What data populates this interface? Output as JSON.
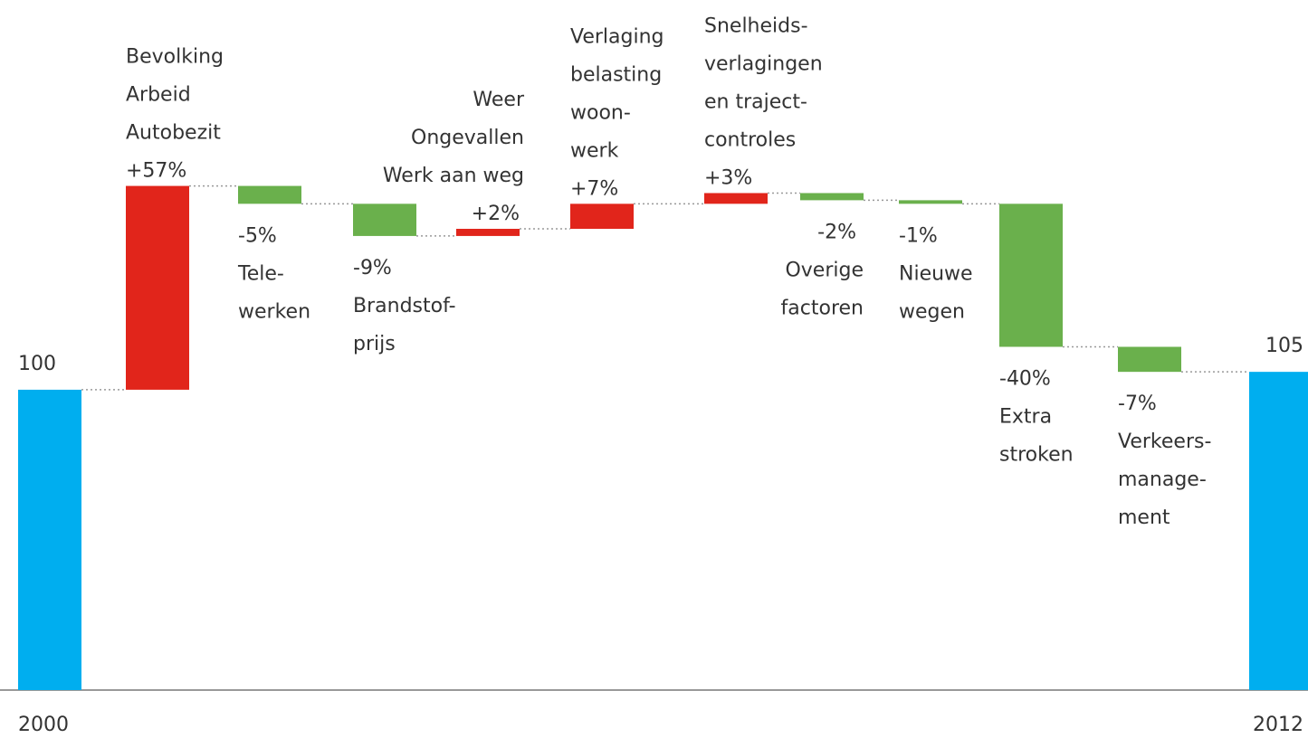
{
  "chart_data": {
    "type": "waterfall",
    "categories": [
      "2000",
      [
        "Bevolking",
        "Arbeid",
        "Autobezit"
      ],
      [
        "Tele-",
        "werken"
      ],
      [
        "Brandstof-",
        "prijs"
      ],
      [
        "Weer",
        "Ongevallen",
        "Werk aan weg"
      ],
      [
        "Verlaging",
        "belasting",
        "woon-",
        "werk"
      ],
      [
        "Snelheids-",
        "verlagingen",
        "en traject-",
        "controles"
      ],
      [
        "Overige",
        "factoren"
      ],
      [
        "Nieuwe",
        "wegen"
      ],
      [
        "Extra",
        "stroken"
      ],
      [
        "Verkeers-",
        "manage-",
        "ment"
      ],
      "2012"
    ],
    "values": [
      100,
      57,
      -5,
      -9,
      2,
      7,
      3,
      -2,
      -1,
      -40,
      -7,
      105
    ],
    "value_labels": [
      "100",
      "+57%",
      "-5%",
      "-9%",
      "+2%",
      "+7%",
      "+3%",
      "-2%",
      "-1%",
      "-40%",
      "-7%",
      "105"
    ],
    "colors": {
      "total": "#00aeef",
      "increase": "#e1251b",
      "decrease": "#6ab04c"
    },
    "ylim": [
      16,
      209
    ]
  }
}
